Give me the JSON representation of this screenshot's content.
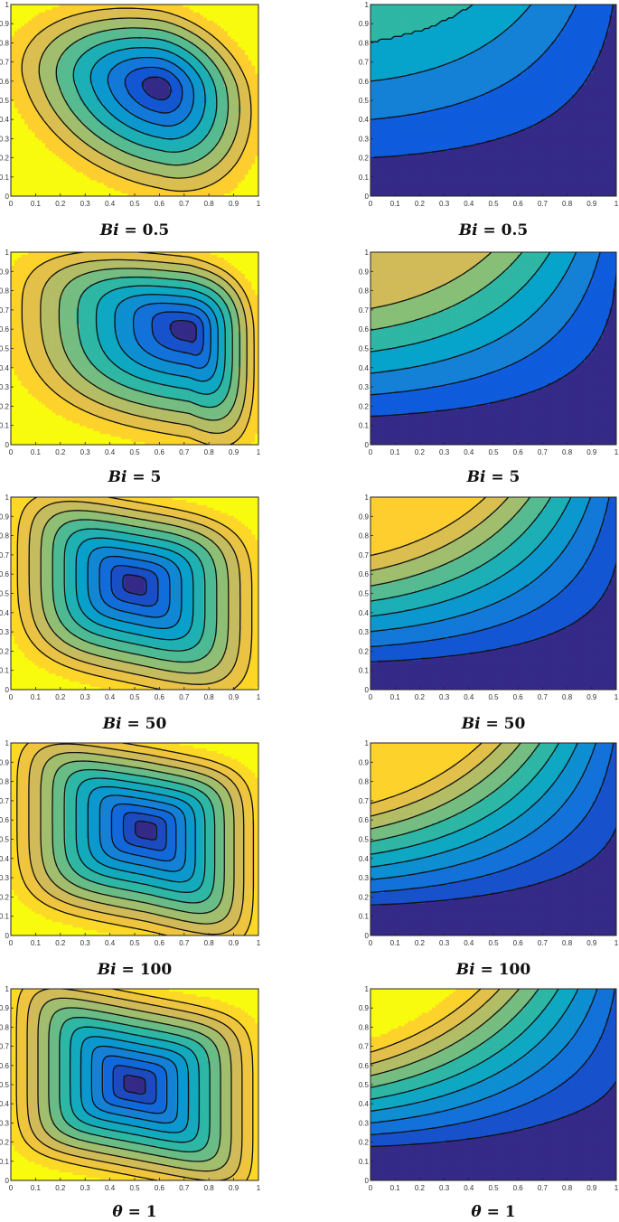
{
  "colors": {
    "levels": [
      "#352a87",
      "#0f5cdd",
      "#1481d6",
      "#06a4ca",
      "#2eb7a4",
      "#87bf77",
      "#d1bb59",
      "#fec832",
      "#f9fb0e"
    ],
    "contour_line": "#111111",
    "frame": "#222222"
  },
  "chart_data": [
    {
      "type": "contour",
      "title": "",
      "caption": {
        "symbol": "Bi",
        "relation": "=",
        "value": "0.5"
      },
      "field": "streamlines",
      "x_ticks": [
        "0",
        "0.1",
        "0.2",
        "0.3",
        "0.4",
        "0.5",
        "0.6",
        "0.7",
        "0.8",
        "0.9",
        "1"
      ],
      "y_ticks": [
        "0",
        "0.1",
        "0.2",
        "0.3",
        "0.4",
        "0.5",
        "0.6",
        "0.7",
        "0.8",
        "0.9",
        "1"
      ],
      "xlim": [
        0,
        1
      ],
      "ylim": [
        0,
        1
      ],
      "vortex_center": [
        0.6,
        0.57
      ],
      "levels": 9
    },
    {
      "type": "contour",
      "title": "",
      "caption": {
        "symbol": "Bi",
        "relation": "=",
        "value": "0.5"
      },
      "field": "isotherms",
      "x_ticks": [
        "0",
        "0.1",
        "0.2",
        "0.3",
        "0.4",
        "0.5",
        "0.6",
        "0.7",
        "0.8",
        "0.9",
        "1"
      ],
      "y_ticks": [
        "0",
        "0.1",
        "0.2",
        "0.3",
        "0.4",
        "0.5",
        "0.6",
        "0.7",
        "0.8",
        "0.9",
        "1"
      ],
      "xlim": [
        0,
        1
      ],
      "ylim": [
        0,
        1
      ],
      "hot_wall_temperature": 0.5,
      "levels": 8
    },
    {
      "type": "contour",
      "title": "",
      "caption": {
        "symbol": "Bi",
        "relation": "=",
        "value": "5"
      },
      "field": "streamlines",
      "x_ticks": [
        "0",
        "0.1",
        "0.2",
        "0.3",
        "0.4",
        "0.5",
        "0.6",
        "0.7",
        "0.8",
        "0.9",
        "1"
      ],
      "y_ticks": [
        "0",
        "0.1",
        "0.2",
        "0.3",
        "0.4",
        "0.5",
        "0.6",
        "0.7",
        "0.8",
        "0.9",
        "1"
      ],
      "xlim": [
        0,
        1
      ],
      "ylim": [
        0,
        1
      ],
      "vortex_center": [
        0.72,
        0.6
      ],
      "levels": 10
    },
    {
      "type": "contour",
      "title": "",
      "caption": {
        "symbol": "Bi",
        "relation": "=",
        "value": "5"
      },
      "field": "isotherms",
      "x_ticks": [
        "0",
        "0.1",
        "0.2",
        "0.3",
        "0.4",
        "0.5",
        "0.6",
        "0.7",
        "0.8",
        "0.9",
        "1"
      ],
      "y_ticks": [
        "0",
        "0.1",
        "0.2",
        "0.3",
        "0.4",
        "0.5",
        "0.6",
        "0.7",
        "0.8",
        "0.9",
        "1"
      ],
      "xlim": [
        0,
        1
      ],
      "ylim": [
        0,
        1
      ],
      "hot_wall_temperature": 0.83,
      "levels": 8
    },
    {
      "type": "contour",
      "title": "",
      "caption": {
        "symbol": "Bi",
        "relation": "=",
        "value": "50"
      },
      "field": "streamlines",
      "x_ticks": [
        "0",
        "0.1",
        "0.2",
        "0.3",
        "0.4",
        "0.5",
        "0.6",
        "0.7",
        "0.8",
        "0.9",
        "1"
      ],
      "y_ticks": [
        "0",
        "0.1",
        "0.2",
        "0.3",
        "0.4",
        "0.5",
        "0.6",
        "0.7",
        "0.8",
        "0.9",
        "1"
      ],
      "xlim": [
        0,
        1
      ],
      "ylim": [
        0,
        1
      ],
      "vortex_center": [
        0.5,
        0.55
      ],
      "levels": 11
    },
    {
      "type": "contour",
      "title": "",
      "caption": {
        "symbol": "Bi",
        "relation": "=",
        "value": "50"
      },
      "field": "isotherms",
      "x_ticks": [
        "0",
        "0.1",
        "0.2",
        "0.3",
        "0.4",
        "0.5",
        "0.6",
        "0.7",
        "0.8",
        "0.9",
        "1"
      ],
      "y_ticks": [
        "0",
        "0.1",
        "0.2",
        "0.3",
        "0.4",
        "0.5",
        "0.6",
        "0.7",
        "0.8",
        "0.9",
        "1"
      ],
      "xlim": [
        0,
        1
      ],
      "ylim": [
        0,
        1
      ],
      "hot_wall_temperature": 0.98,
      "levels": 9
    },
    {
      "type": "contour",
      "title": "",
      "caption": {
        "symbol": "Bi",
        "relation": "=",
        "value": "100"
      },
      "field": "streamlines",
      "x_ticks": [
        "0",
        "0.1",
        "0.2",
        "0.3",
        "0.4",
        "0.5",
        "0.6",
        "0.7",
        "0.8",
        "0.9",
        "1"
      ],
      "y_ticks": [
        "0",
        "0.1",
        "0.2",
        "0.3",
        "0.4",
        "0.5",
        "0.6",
        "0.7",
        "0.8",
        "0.9",
        "1"
      ],
      "xlim": [
        0,
        1
      ],
      "ylim": [
        0,
        1
      ],
      "vortex_center": [
        0.55,
        0.55
      ],
      "levels": 12
    },
    {
      "type": "contour",
      "title": "",
      "caption": {
        "symbol": "Bi",
        "relation": "=",
        "value": "100"
      },
      "field": "isotherms",
      "x_ticks": [
        "0",
        "0.1",
        "0.2",
        "0.3",
        "0.4",
        "0.5",
        "0.6",
        "0.7",
        "0.8",
        "0.9",
        "1"
      ],
      "y_ticks": [
        "0",
        "0.1",
        "0.2",
        "0.3",
        "0.4",
        "0.5",
        "0.6",
        "0.7",
        "0.8",
        "0.9",
        "1"
      ],
      "xlim": [
        0,
        1
      ],
      "ylim": [
        0,
        1
      ],
      "hot_wall_temperature": 0.99,
      "levels": 10
    },
    {
      "type": "contour",
      "title": "",
      "caption": {
        "symbol": "θ",
        "relation": "=",
        "value": "1"
      },
      "field": "streamlines",
      "x_ticks": [
        "0",
        "0.1",
        "0.2",
        "0.3",
        "0.4",
        "0.5",
        "0.6",
        "0.7",
        "0.8",
        "0.9",
        "1"
      ],
      "y_ticks": [
        "0",
        "0.1",
        "0.2",
        "0.3",
        "0.4",
        "0.5",
        "0.6",
        "0.7",
        "0.8",
        "0.9",
        "1"
      ],
      "xlim": [
        0,
        1
      ],
      "ylim": [
        0,
        1
      ],
      "vortex_center": [
        0.5,
        0.5
      ],
      "levels": 12
    },
    {
      "type": "contour",
      "title": "",
      "caption": {
        "symbol": "θ",
        "relation": "=",
        "value": "1"
      },
      "field": "isotherms",
      "x_ticks": [
        "0",
        "0.1",
        "0.2",
        "0.3",
        "0.4",
        "0.5",
        "0.6",
        "0.7",
        "0.8",
        "0.9",
        "1"
      ],
      "y_ticks": [
        "0",
        "0.1",
        "0.2",
        "0.3",
        "0.4",
        "0.5",
        "0.6",
        "0.7",
        "0.8",
        "0.9",
        "1"
      ],
      "xlim": [
        0,
        1
      ],
      "ylim": [
        0,
        1
      ],
      "hot_wall_temperature": 1.0,
      "levels": 10
    }
  ]
}
